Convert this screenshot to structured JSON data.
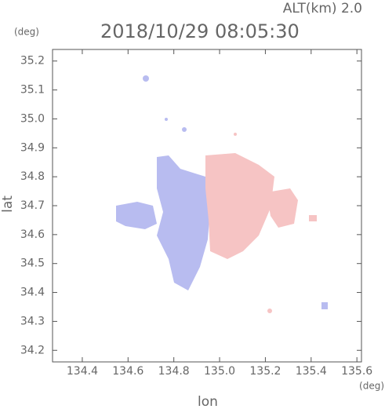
{
  "chart_data": {
    "type": "map",
    "title": "2018/10/29 08:05:30",
    "subtitle": "ALT(km) 2.0",
    "x_label": "lon",
    "y_label": "lat",
    "x_unit": "(deg)",
    "y_unit": "(deg)",
    "xlim": [
      134.27,
      135.62
    ],
    "ylim": [
      34.16,
      35.24
    ],
    "xticks": [
      134.4,
      134.6,
      134.8,
      {
        "value": 135.0,
        "label": "135.0"
      },
      135.2,
      135.4,
      135.6
    ],
    "yticks": [
      34.2,
      34.3,
      34.4,
      34.5,
      34.6,
      34.7,
      34.8,
      34.9,
      {
        "value": 35.0,
        "label": "35.0"
      },
      35.1,
      35.2
    ]
  }
}
